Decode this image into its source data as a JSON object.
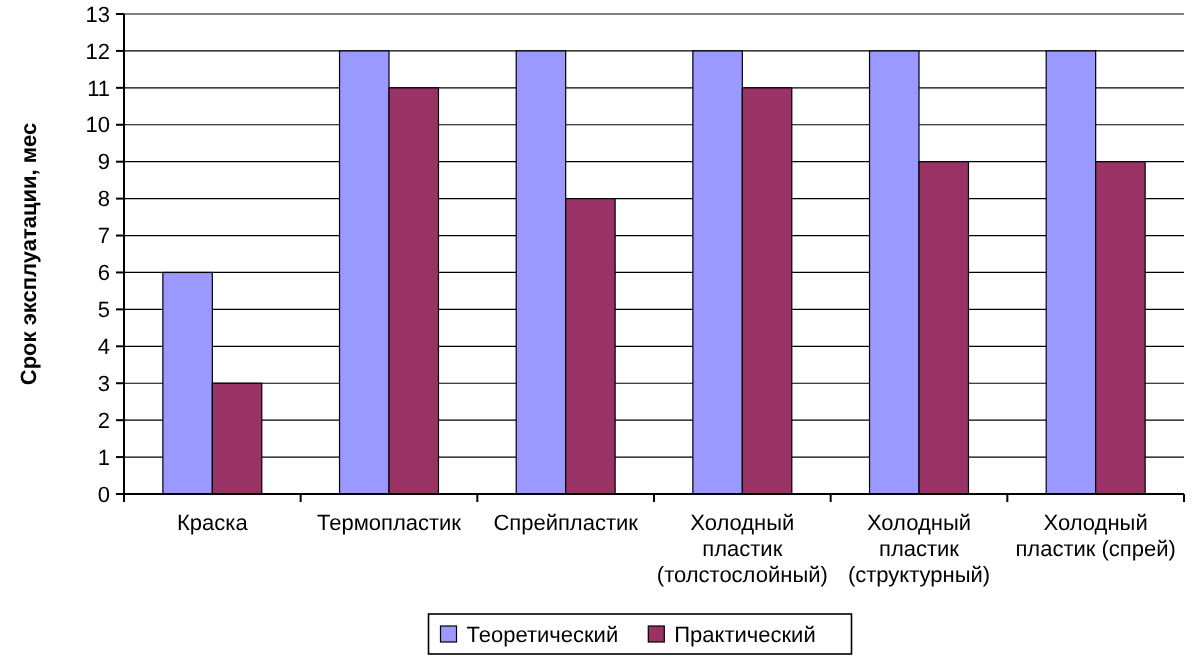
{
  "chart_data": {
    "type": "bar",
    "ylabel": "Срок эксплуатации, мес",
    "categories": [
      "Краска",
      "Термопластик",
      "Спрейпластик",
      "Холодный пластик (толстослойный)",
      "Холодный пластик (структурный)",
      "Холодный пластик (спрей)"
    ],
    "series": [
      {
        "name": "Теоретический",
        "color": "#9999ff",
        "values": [
          6,
          12,
          12,
          12,
          12,
          12
        ]
      },
      {
        "name": "Практический",
        "color": "#993366",
        "values": [
          3,
          11,
          8,
          11,
          9,
          9
        ]
      }
    ],
    "ylim": [
      0,
      13
    ],
    "yticks": [
      0,
      1,
      2,
      3,
      4,
      5,
      6,
      7,
      8,
      9,
      10,
      11,
      12,
      13
    ],
    "grid": "y",
    "legend": "bottom"
  }
}
